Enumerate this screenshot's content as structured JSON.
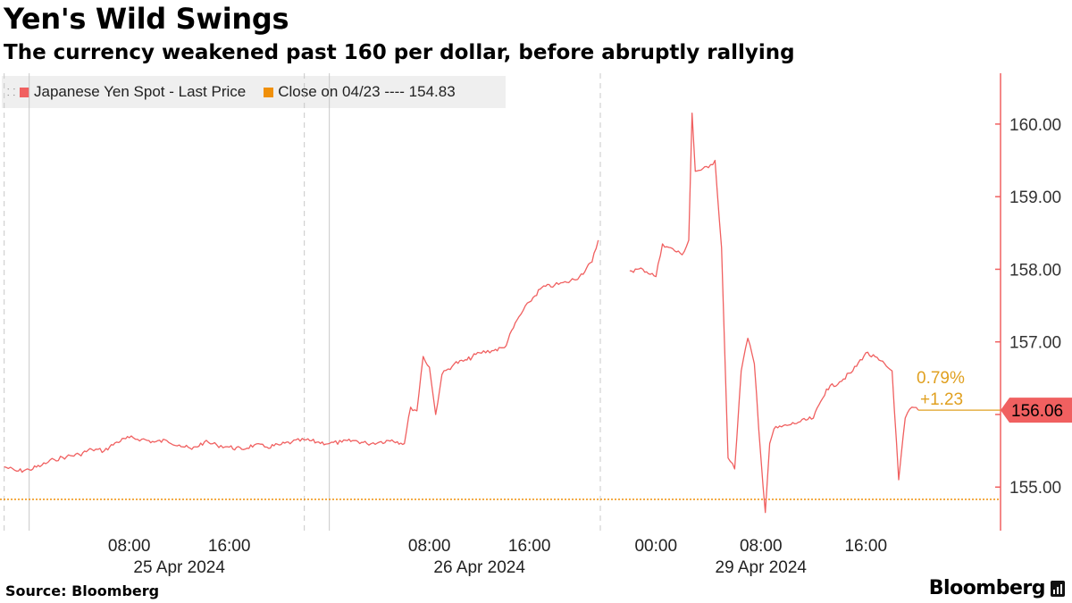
{
  "header": {
    "title": "Yen's Wild Swings",
    "subtitle": "The currency weakened past 160 per dollar, before abruptly rallying"
  },
  "legend": {
    "items": [
      {
        "label": "Japanese Yen Spot - Last Price",
        "color": "#f06060"
      },
      {
        "label": "Close on 04/23 ---- 154.83",
        "color": "#f0900a"
      }
    ]
  },
  "footer": {
    "source": "Source: Bloomberg",
    "brand": "Bloomberg"
  },
  "colors": {
    "series": "#f06060",
    "reference": "#f0900a",
    "change": "#e0a020",
    "axis": "#f06060",
    "grid": "#cccccc"
  },
  "chart_data": {
    "type": "line",
    "title": "Yen's Wild Swings",
    "subtitle": "The currency weakened past 160 per dollar, before abruptly rallying",
    "y_ticks": [
      "155.00",
      "156.00",
      "157.00",
      "158.00",
      "159.00",
      "160.00"
    ],
    "ylim": [
      154.4,
      160.7
    ],
    "x_tick_labels": [
      "08:00",
      "16:00",
      "08:00",
      "16:00",
      "00:00",
      "08:00",
      "16:00"
    ],
    "date_labels": [
      "25 Apr 2024",
      "26 Apr 2024",
      "29 Apr 2024"
    ],
    "reference_line": {
      "label": "Close on 04/23",
      "value": 154.83
    },
    "last_price": {
      "value": 156.06,
      "label": "156.06"
    },
    "change": {
      "percent": "0.79%",
      "absolute": "+1.23"
    },
    "series": [
      {
        "name": "Japanese Yen Spot - Last Price",
        "segments": [
          [
            [
              "2024-04-24 22:00",
              155.28
            ],
            [
              "2024-04-24 23:00",
              155.22
            ],
            [
              "2024-04-25 00:00",
              155.24
            ],
            [
              "2024-04-25 01:00",
              155.3
            ],
            [
              "2024-04-25 02:00",
              155.38
            ],
            [
              "2024-04-25 03:00",
              155.42
            ],
            [
              "2024-04-25 04:00",
              155.45
            ],
            [
              "2024-04-25 05:00",
              155.52
            ],
            [
              "2024-04-25 06:00",
              155.5
            ],
            [
              "2024-04-25 07:00",
              155.62
            ],
            [
              "2024-04-25 08:00",
              155.68
            ],
            [
              "2024-04-25 09:00",
              155.66
            ],
            [
              "2024-04-25 10:00",
              155.62
            ],
            [
              "2024-04-25 11:00",
              155.64
            ],
            [
              "2024-04-25 12:00",
              155.58
            ],
            [
              "2024-04-25 13:00",
              155.52
            ],
            [
              "2024-04-25 14:00",
              155.62
            ],
            [
              "2024-04-25 15:00",
              155.58
            ],
            [
              "2024-04-25 16:00",
              155.55
            ],
            [
              "2024-04-25 17:00",
              155.52
            ],
            [
              "2024-04-25 18:00",
              155.58
            ],
            [
              "2024-04-25 19:00",
              155.55
            ],
            [
              "2024-04-25 20:00",
              155.58
            ],
            [
              "2024-04-25 21:00",
              155.62
            ],
            [
              "2024-04-25 22:00",
              155.65
            ],
            [
              "2024-04-25 23:00",
              155.62
            ],
            [
              "2024-04-26 00:00",
              155.6
            ],
            [
              "2024-04-26 01:00",
              155.62
            ],
            [
              "2024-04-26 02:00",
              155.64
            ],
            [
              "2024-04-26 03:00",
              155.6
            ],
            [
              "2024-04-26 04:00",
              155.62
            ],
            [
              "2024-04-26 05:00",
              155.65
            ],
            [
              "2024-04-26 06:00",
              155.6
            ],
            [
              "2024-04-26 06:30",
              156.1
            ],
            [
              "2024-04-26 07:00",
              156.05
            ],
            [
              "2024-04-26 07:30",
              156.8
            ],
            [
              "2024-04-26 08:00",
              156.65
            ],
            [
              "2024-04-26 08:30",
              156.0
            ],
            [
              "2024-04-26 09:00",
              156.55
            ],
            [
              "2024-04-26 10:00",
              156.7
            ],
            [
              "2024-04-26 11:00",
              156.75
            ],
            [
              "2024-04-26 12:00",
              156.85
            ],
            [
              "2024-04-26 13:00",
              156.88
            ],
            [
              "2024-04-26 14:00",
              156.92
            ],
            [
              "2024-04-26 15:00",
              157.3
            ],
            [
              "2024-04-26 16:00",
              157.55
            ],
            [
              "2024-04-26 17:00",
              157.75
            ],
            [
              "2024-04-26 18:00",
              157.78
            ],
            [
              "2024-04-26 19:00",
              157.82
            ],
            [
              "2024-04-26 20:00",
              157.9
            ],
            [
              "2024-04-26 21:00",
              158.1
            ],
            [
              "2024-04-26 21:30",
              158.4
            ]
          ],
          [
            [
              "2024-04-28 22:00",
              157.98
            ],
            [
              "2024-04-28 23:00",
              158.0
            ],
            [
              "2024-04-29 00:00",
              157.9
            ],
            [
              "2024-04-29 00:30",
              158.35
            ],
            [
              "2024-04-29 01:00",
              158.3
            ],
            [
              "2024-04-29 02:00",
              158.2
            ],
            [
              "2024-04-29 02:30",
              158.4
            ],
            [
              "2024-04-29 02:45",
              160.15
            ],
            [
              "2024-04-29 03:00",
              159.35
            ],
            [
              "2024-04-29 04:00",
              159.4
            ],
            [
              "2024-04-29 04:30",
              159.5
            ],
            [
              "2024-04-29 05:00",
              158.3
            ],
            [
              "2024-04-29 05:30",
              155.4
            ],
            [
              "2024-04-29 06:00",
              155.25
            ],
            [
              "2024-04-29 06:30",
              156.6
            ],
            [
              "2024-04-29 07:00",
              157.05
            ],
            [
              "2024-04-29 07:30",
              156.7
            ],
            [
              "2024-04-29 08:00",
              155.4
            ],
            [
              "2024-04-29 08:20",
              154.65
            ],
            [
              "2024-04-29 08:40",
              155.6
            ],
            [
              "2024-04-29 09:00",
              155.8
            ],
            [
              "2024-04-29 10:00",
              155.85
            ],
            [
              "2024-04-29 11:00",
              155.9
            ],
            [
              "2024-04-29 12:00",
              155.95
            ],
            [
              "2024-04-29 13:00",
              156.35
            ],
            [
              "2024-04-29 14:00",
              156.45
            ],
            [
              "2024-04-29 15:00",
              156.6
            ],
            [
              "2024-04-29 16:00",
              156.85
            ],
            [
              "2024-04-29 17:00",
              156.75
            ],
            [
              "2024-04-29 18:00",
              156.6
            ],
            [
              "2024-04-29 18:30",
              155.1
            ],
            [
              "2024-04-29 19:00",
              155.95
            ],
            [
              "2024-04-29 19:30",
              156.1
            ],
            [
              "2024-04-29 20:00",
              156.06
            ]
          ]
        ]
      }
    ],
    "grid": false,
    "legend_position": "top-left",
    "y_axis_position": "right"
  }
}
